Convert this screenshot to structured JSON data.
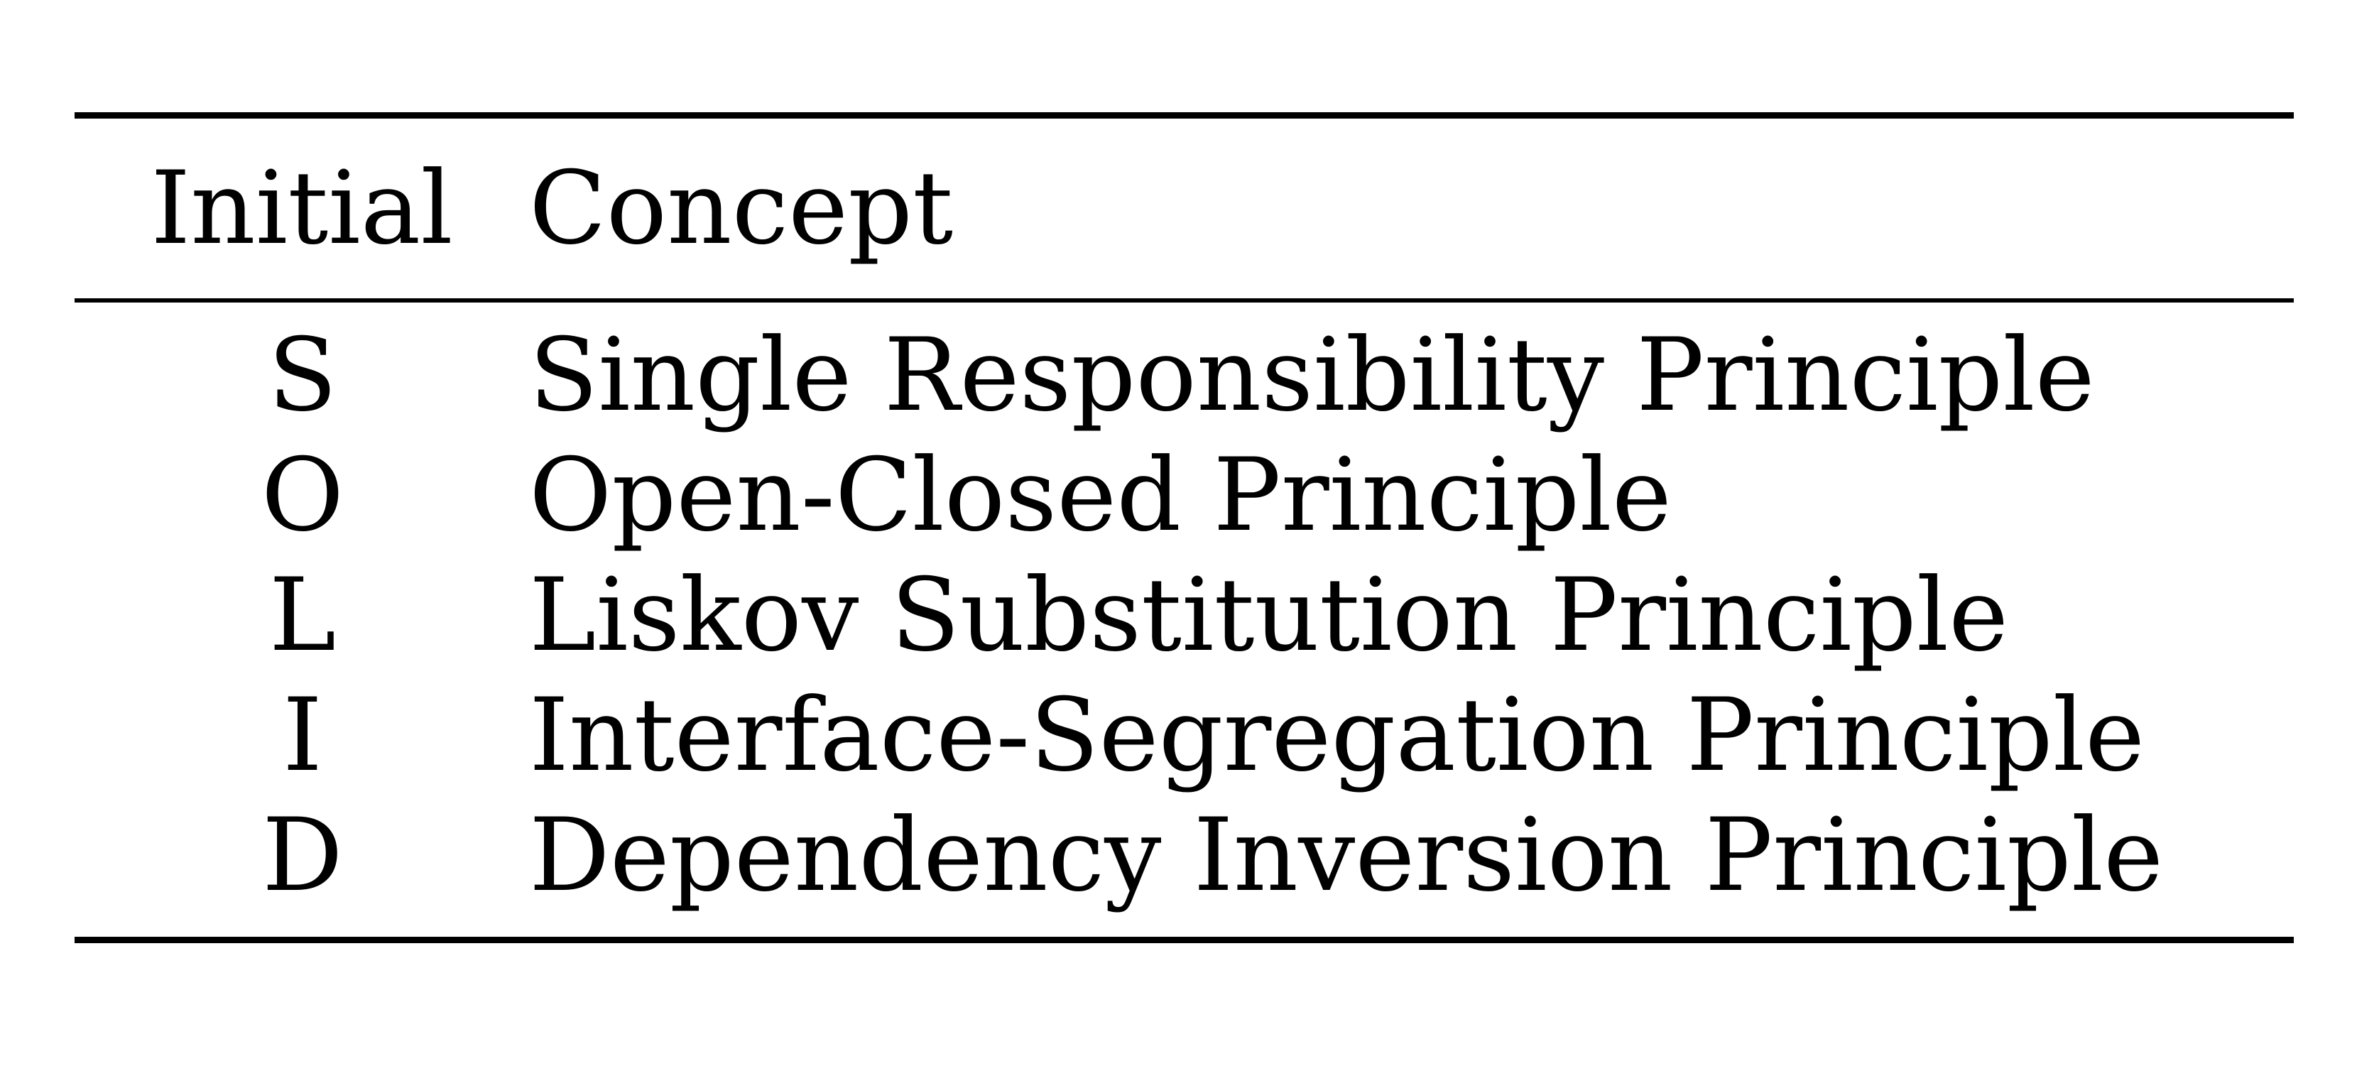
{
  "table": {
    "headers": {
      "initial": "Initial",
      "concept": "Concept"
    },
    "rows": [
      {
        "initial": "S",
        "concept": "Single Responsibility Principle"
      },
      {
        "initial": "O",
        "concept": "Open-Closed Principle"
      },
      {
        "initial": "L",
        "concept": "Liskov Substitution Principle"
      },
      {
        "initial": "I",
        "concept": "Interface-Segregation Principle"
      },
      {
        "initial": "D",
        "concept": "Dependency Inversion Principle"
      }
    ]
  }
}
